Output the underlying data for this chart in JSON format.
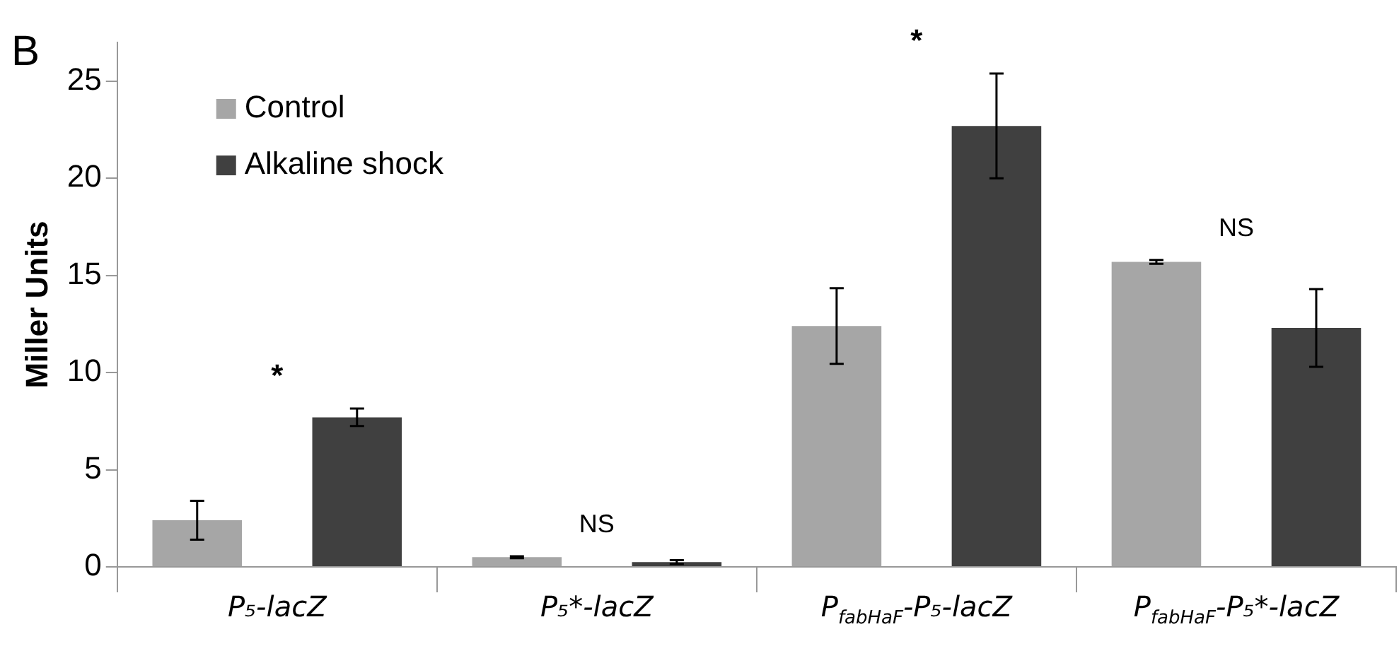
{
  "chart_data": {
    "type": "bar",
    "ylabel": "Miller Units",
    "categories": [
      "P₅-lacZ",
      "P₅*-lacZ",
      "P$_{fabHaF}$-P₅-lacZ",
      "P$_{fabHaF}$-P₅*-lacZ"
    ],
    "series": [
      {
        "name": "Control",
        "color": "#a6a6a6",
        "values": [
          2.4,
          0.5,
          12.4,
          15.7
        ],
        "errors": [
          1.0,
          0.05,
          1.95,
          0.1
        ]
      },
      {
        "name": "Alkaline shock",
        "color": "#404040",
        "values": [
          7.7,
          0.25,
          22.7,
          12.3
        ],
        "errors": [
          0.45,
          0.1,
          2.7,
          2.0
        ]
      }
    ],
    "ylim": [
      0,
      27
    ],
    "yticks": [
      0,
      5,
      10,
      15,
      20,
      25
    ],
    "grid": false,
    "legend": "top left",
    "annotations": [
      "B",
      "*",
      "NS",
      "*",
      "NS"
    ]
  }
}
